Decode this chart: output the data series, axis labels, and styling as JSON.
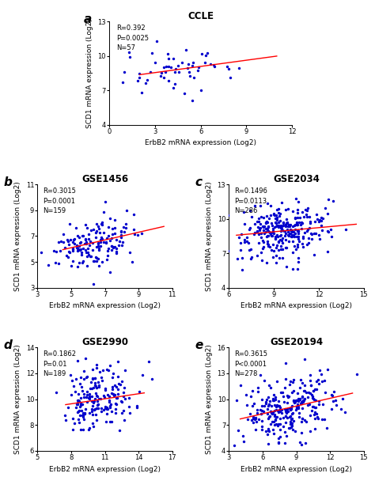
{
  "panels": [
    {
      "label": "a",
      "title": "CCLE",
      "stats": "R=0.392\nP=0.0025\nN=57",
      "xlabel": "ErbB2 mRNA expression (Log2)",
      "ylabel": "SCD1 mRNA expression (Log2)",
      "xlim": [
        0,
        12
      ],
      "ylim": [
        4,
        13
      ],
      "xticks": [
        0,
        3,
        6,
        9,
        12
      ],
      "yticks": [
        4,
        7,
        10,
        13
      ],
      "n": 57,
      "seed": 42,
      "x_mean": 4.8,
      "x_std": 2.0,
      "slope": 0.18,
      "intercept": 8.0,
      "noise": 1.1,
      "line_x": [
        2,
        11
      ]
    },
    {
      "label": "b",
      "title": "GSE1456",
      "stats": "R=0.3015\nP=0.0001\nN=159",
      "xlabel": "ErbB2 mRNA expression (Log2)",
      "ylabel": "SCD1 mRNA expression (Log2)",
      "xlim": [
        3,
        11
      ],
      "ylim": [
        3,
        11
      ],
      "xticks": [
        3,
        5,
        7,
        9,
        11
      ],
      "yticks": [
        3,
        5,
        7,
        9,
        11
      ],
      "n": 159,
      "seed": 123,
      "x_mean": 6.3,
      "x_std": 1.1,
      "slope": 0.3,
      "intercept": 4.6,
      "noise": 1.0,
      "line_x": [
        4.5,
        10.5
      ]
    },
    {
      "label": "c",
      "title": "GSE2034",
      "stats": "R=0.1496\nP=0.0113\nN=286",
      "xlabel": "ErbB2 mRNA expression (Log2)",
      "ylabel": "SCD1 mRNA expression (Log2)",
      "xlim": [
        6,
        15
      ],
      "ylim": [
        4,
        13
      ],
      "xticks": [
        6,
        9,
        12,
        15
      ],
      "yticks": [
        4,
        7,
        10,
        13
      ],
      "n": 286,
      "seed": 200,
      "x_mean": 9.5,
      "x_std": 1.4,
      "slope": 0.12,
      "intercept": 7.8,
      "noise": 1.2,
      "line_x": [
        6.5,
        14.5
      ]
    },
    {
      "label": "d",
      "title": "GSE2990",
      "stats": "R=0.1862\nP=0.01\nN=189",
      "xlabel": "ErbB2 mRNA expression (Log2)",
      "ylabel": "SCD1 mRNA expression (Log2)",
      "xlim": [
        5,
        17
      ],
      "ylim": [
        6,
        14
      ],
      "xticks": [
        5,
        8,
        11,
        14,
        17
      ],
      "yticks": [
        6,
        8,
        10,
        12,
        14
      ],
      "n": 189,
      "seed": 300,
      "x_mean": 10.3,
      "x_std": 1.5,
      "slope": 0.13,
      "intercept": 8.6,
      "noise": 1.3,
      "line_x": [
        7.5,
        14.5
      ]
    },
    {
      "label": "e",
      "title": "GSE20194",
      "stats": "R=0.3615\nP<0.0001\nN=278",
      "xlabel": "ErbB2 mRNA expression (Log2)",
      "ylabel": "SCD1 mRNA expression (Log2)",
      "xlim": [
        3,
        15
      ],
      "ylim": [
        4,
        16
      ],
      "xticks": [
        3,
        6,
        9,
        12,
        15
      ],
      "yticks": [
        4,
        7,
        10,
        13,
        16
      ],
      "n": 278,
      "seed": 400,
      "x_mean": 8.2,
      "x_std": 2.0,
      "slope": 0.3,
      "intercept": 6.5,
      "noise": 1.7,
      "line_x": [
        4.0,
        14.0
      ]
    }
  ],
  "dot_color": "#0000CD",
  "line_color": "#FF0000",
  "bg_color": "#FFFFFF",
  "dot_size": 6,
  "label_fontsize": 11,
  "title_fontsize": 8.5,
  "axis_fontsize": 6.5,
  "tick_fontsize": 6,
  "stats_fontsize": 6
}
